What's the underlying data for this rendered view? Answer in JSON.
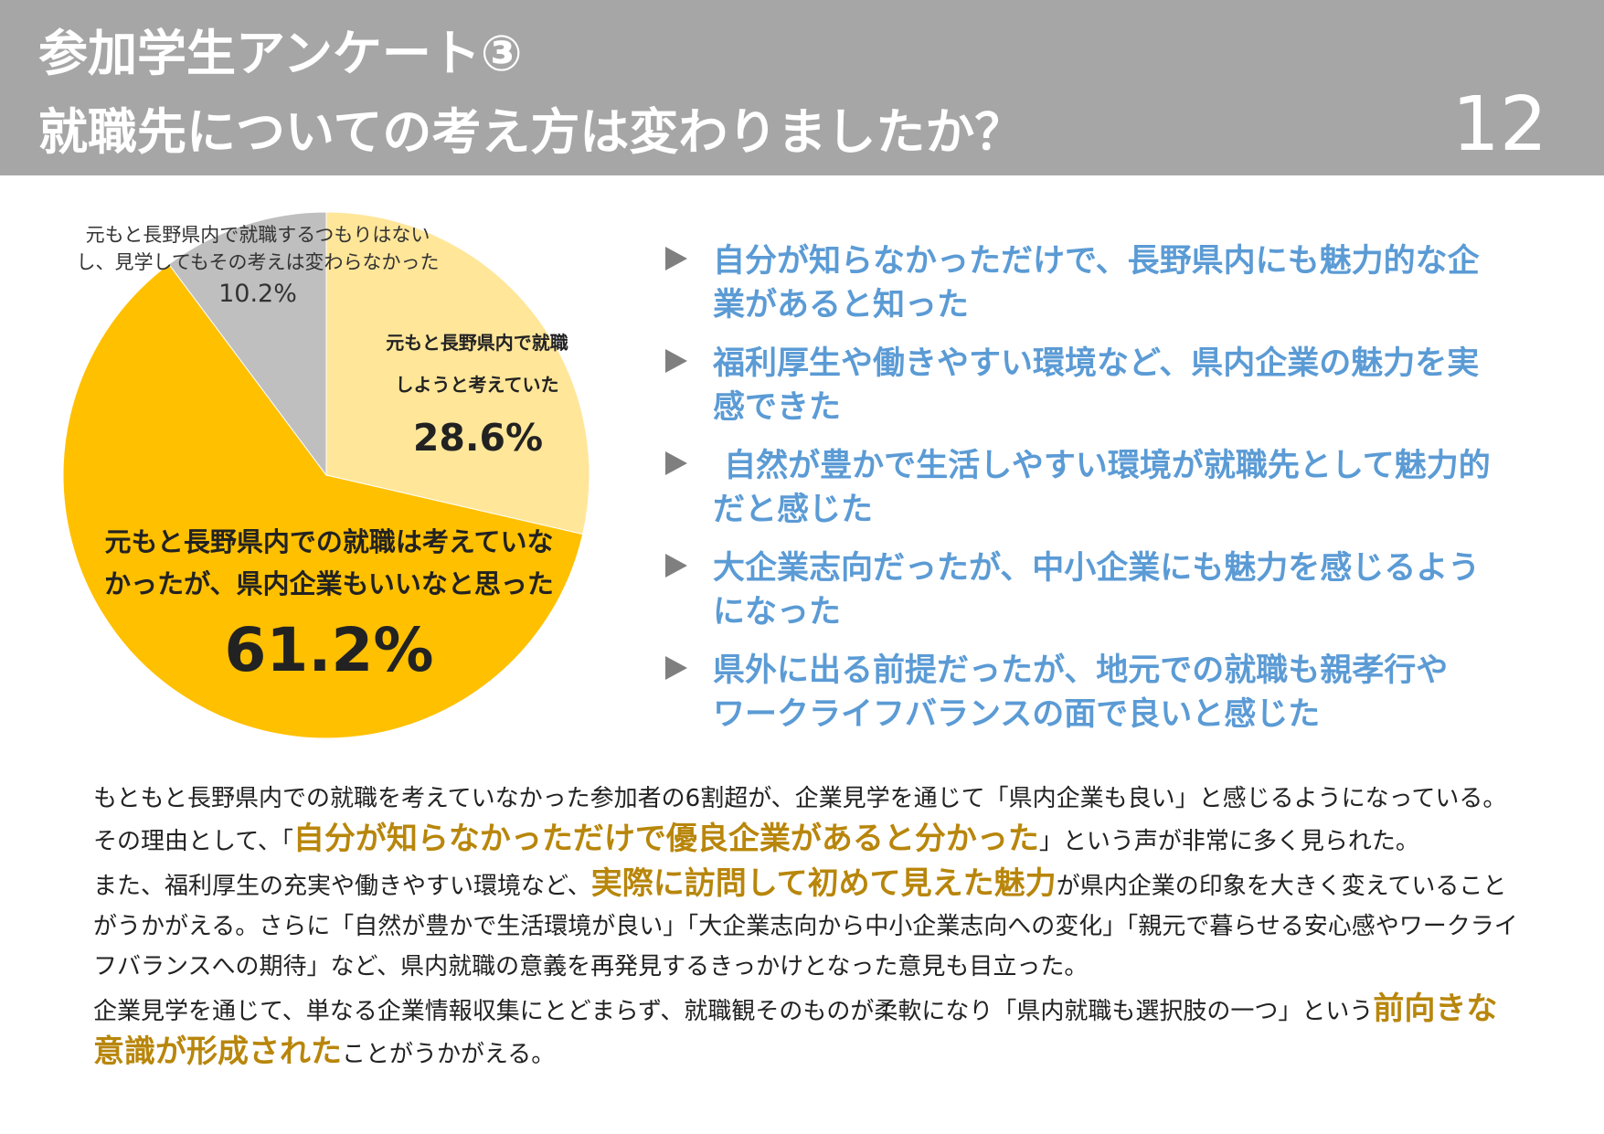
{
  "header": {
    "title_line1": "参加学生アンケート③",
    "title_line2": "就職先についての考え方は変わりましたか？",
    "page_number": "12"
  },
  "colors": {
    "header_bg": "#a6a6a6",
    "slice_light_yellow": "#ffe699",
    "slice_gold": "#ffc000",
    "slice_gray": "#bfbfbf",
    "bullet_text": "#5b9bd5",
    "highlight_text": "#b8860b"
  },
  "chart_data": {
    "type": "pie",
    "slices": [
      {
        "label": "元もと長野県内で就職しようと考えていた",
        "label_line1": "元もと長野県内で就職",
        "label_line2": "しようと考えていた",
        "value": 28.6,
        "value_label": "28.6%",
        "color": "#ffe699"
      },
      {
        "label": "元もと長野県内での就職は考えていなかったが、県内企業もいいなと思った",
        "label_line1": "元もと長野県内での就職は考えていな",
        "label_line2": "かったが、県内企業もいいなと思った",
        "value": 61.2,
        "value_label": "61.2%",
        "color": "#ffc000"
      },
      {
        "label": "元もと長野県内で就職するつもりはないし、見学してもその考えは変わらなかった",
        "label_line1": "元もと長野県内で就職するつもりはない",
        "label_line2": "し、見学してもその考えは変わらなかった",
        "value": 10.2,
        "value_label": "10.2%",
        "color": "#bfbfbf"
      }
    ]
  },
  "bullets": [
    {
      "line1": "自分が知らなかっただけで、長野県内にも魅力的な企",
      "line2": "業があると知った"
    },
    {
      "line1": "福利厚生や働きやすい環境など、県内企業の魅力を実",
      "line2": "感できた"
    },
    {
      "line1": " 自然が豊かで生活しやすい環境が就職先として魅力的",
      "line2": "だと感じた"
    },
    {
      "line1": "大企業志向だったが、中小企業にも魅力を感じるよう",
      "line2": "になった"
    },
    {
      "line1": "県外に出る前提だったが、地元での就職も親孝行や",
      "line2": "ワークライフバランスの面で良いと感じた"
    }
  ],
  "summary": {
    "p1_a": "もともと長野県内での就職を考えていなかった参加者の6割超が、企業見学を通じて「県内企業も良い」と感じるようになっている。その理由として、「",
    "p1_hl": "自分が知らなかっただけで優良企業があると分かった",
    "p1_b": "」という声が非常に多く見られた。",
    "p2_a": "また、福利厚生の充実や働きやすい環境など、",
    "p2_hl": "実際に訪問して初めて見えた魅力",
    "p2_b": "が県内企業の印象を大きく変えていることがうかがえる。さらに「自然が豊かで生活環境が良い」「大企業志向から中小企業志向への変化」「親元で暮らせる安心感やワークライフバランスへの期待」など、県内就職の意義を再発見するきっかけとなった意見も目立った。",
    "p3_a": "企業見学を通じて、単なる企業情報収集にとどまらず、就職観そのものが柔軟になり「県内就職も選択肢の一つ」という",
    "p3_hl": "前向きな意識が形成された",
    "p3_b": "ことがうかがえる。"
  }
}
